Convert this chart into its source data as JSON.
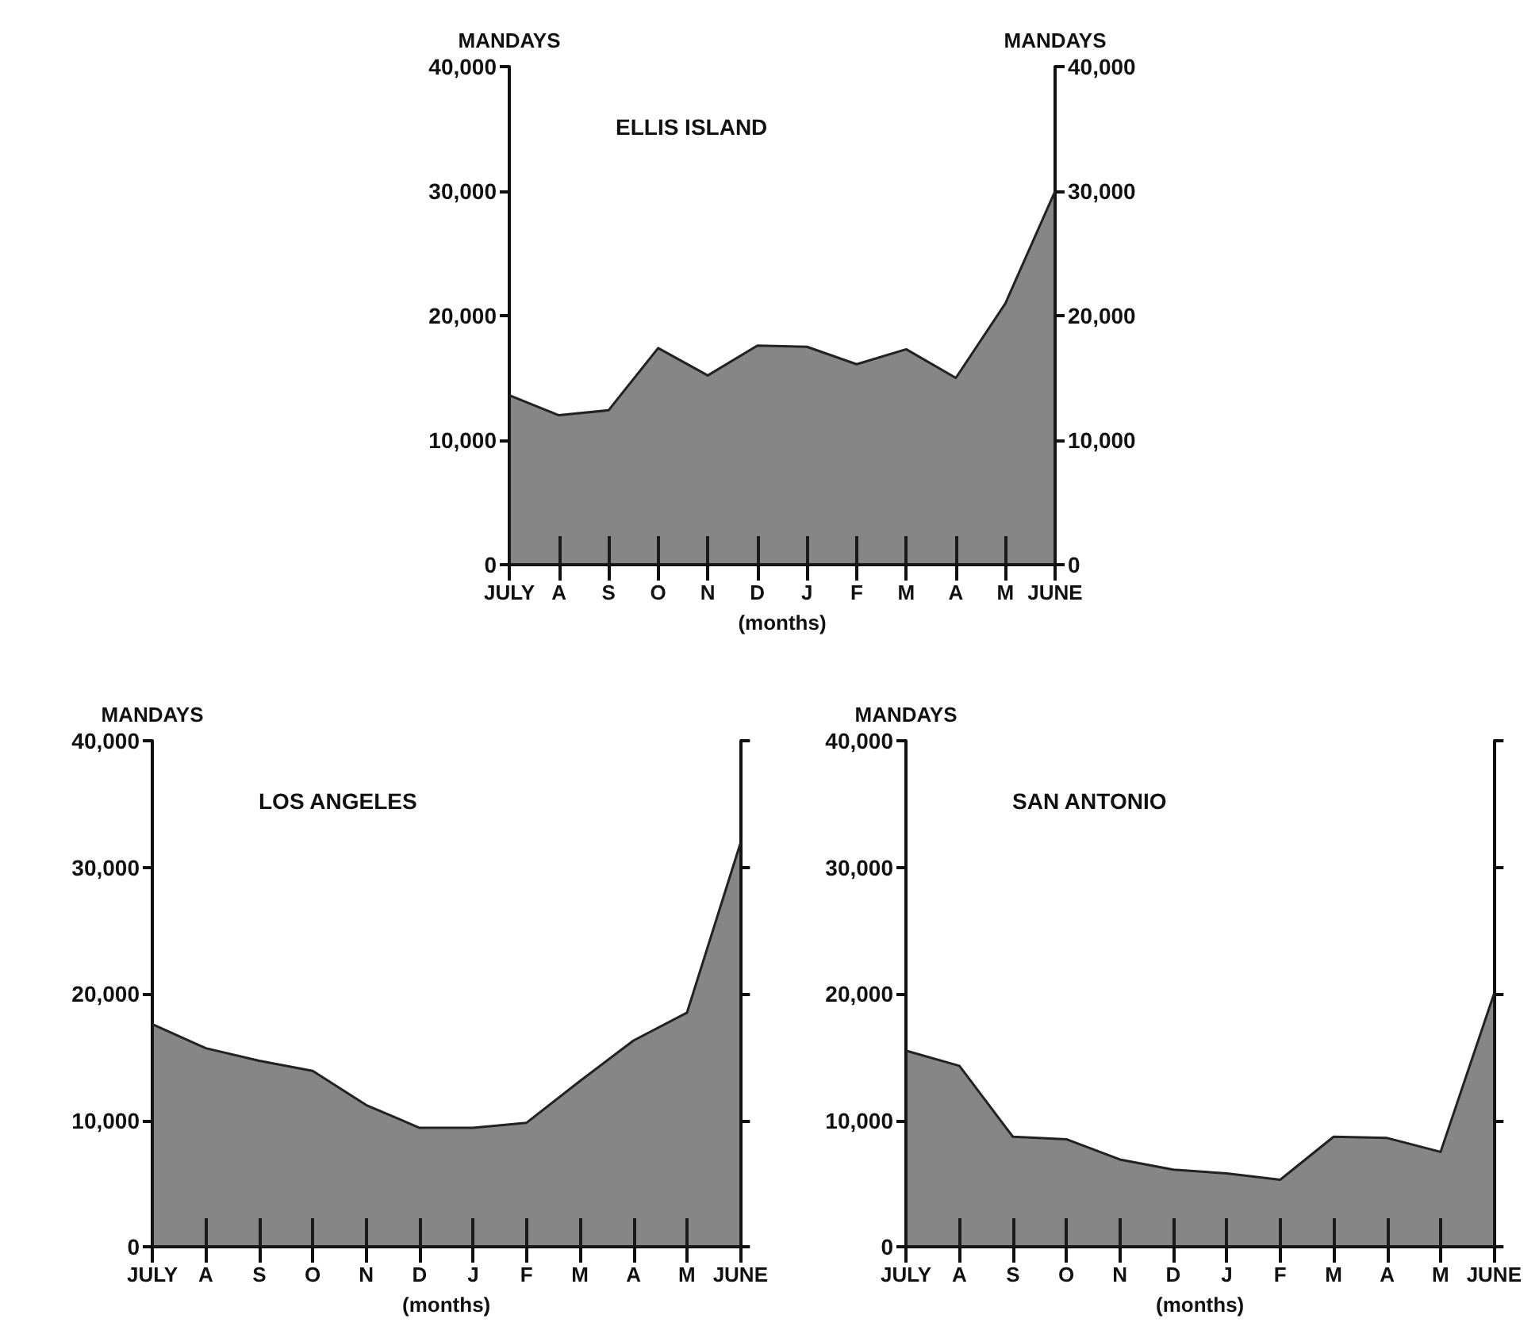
{
  "chart_data": [
    {
      "type": "area",
      "title": "ELLIS ISLAND",
      "xlabel": "(months)",
      "ylabel": "MANDAYS",
      "y2label": "MANDAYS",
      "categories": [
        "JULY",
        "A",
        "S",
        "O",
        "N",
        "D",
        "J",
        "F",
        "M",
        "A",
        "M",
        "JUNE"
      ],
      "color": "#222222",
      "values": [
        13600,
        12000,
        12400,
        17400,
        15200,
        17600,
        17500,
        16100,
        17300,
        15000,
        21000,
        30000
      ],
      "ylim": [
        0,
        40000
      ],
      "yticks": [
        {
          "value": 0,
          "label": "0"
        },
        {
          "value": 10000,
          "label": "10,000"
        },
        {
          "value": 20000,
          "label": "20,000"
        },
        {
          "value": 30000,
          "label": "30,000"
        },
        {
          "value": 40000,
          "label": "40,000"
        }
      ],
      "y2lim": [
        0,
        40000
      ],
      "y2ticks": [
        {
          "value": 0,
          "label": "0"
        },
        {
          "value": 10000,
          "label": "10,000"
        },
        {
          "value": 20000,
          "label": "20,000"
        },
        {
          "value": 30000,
          "label": "30,000"
        },
        {
          "value": 40000,
          "label": "40,000"
        }
      ],
      "grid": false
    },
    {
      "type": "area",
      "title": "LOS ANGELES",
      "xlabel": "(months)",
      "ylabel": "MANDAYS",
      "categories": [
        "JULY",
        "A",
        "S",
        "O",
        "N",
        "D",
        "J",
        "F",
        "M",
        "A",
        "M",
        "JUNE"
      ],
      "color": "#222222",
      "values": [
        17600,
        15700,
        14700,
        13900,
        11200,
        9400,
        9400,
        9800,
        13100,
        16300,
        18500,
        31900
      ],
      "ylim": [
        0,
        40000
      ],
      "yticks": [
        {
          "value": 0,
          "label": "0"
        },
        {
          "value": 10000,
          "label": "10,000"
        },
        {
          "value": 20000,
          "label": "20,000"
        },
        {
          "value": 30000,
          "label": "30,000"
        },
        {
          "value": 40000,
          "label": "40,000"
        }
      ],
      "grid": false
    },
    {
      "type": "area",
      "title": "SAN ANTONIO",
      "xlabel": "(months)",
      "ylabel": "MANDAYS",
      "categories": [
        "JULY",
        "A",
        "S",
        "O",
        "N",
        "D",
        "J",
        "F",
        "M",
        "A",
        "M",
        "JUNE"
      ],
      "color": "#222222",
      "values": [
        15500,
        14300,
        8700,
        8500,
        6900,
        6100,
        5800,
        5300,
        8700,
        8600,
        7500,
        20000
      ],
      "ylim": [
        0,
        40000
      ],
      "yticks": [
        {
          "value": 0,
          "label": "0"
        },
        {
          "value": 10000,
          "label": "10,000"
        },
        {
          "value": 20000,
          "label": "20,000"
        },
        {
          "value": 30000,
          "label": "30,000"
        },
        {
          "value": 40000,
          "label": "40,000"
        }
      ],
      "grid": false
    }
  ]
}
